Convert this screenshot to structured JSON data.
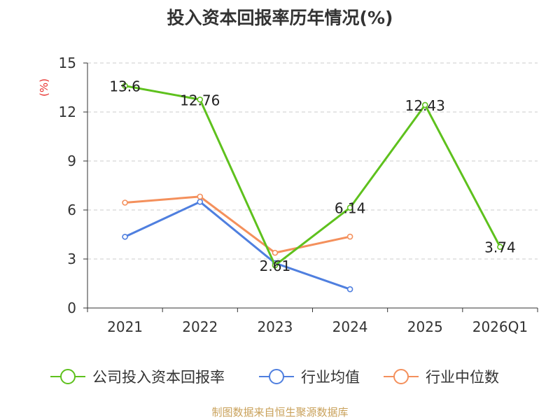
{
  "chart_data": {
    "type": "line",
    "title": "投入资本回报率历年情况(%)",
    "ylabel": "(%)",
    "xlabel": "",
    "categories": [
      "2021",
      "2022",
      "2023",
      "2024",
      "2025",
      "2026Q1"
    ],
    "ylim": [
      0,
      15
    ],
    "yticks": [
      0,
      3,
      6,
      9,
      12,
      15
    ],
    "grid": true,
    "legend_position": "bottom",
    "series": [
      {
        "name": "公司投入资本回报率",
        "color": "#5ec11d",
        "values": [
          13.6,
          12.76,
          2.61,
          6.14,
          12.43,
          3.74
        ],
        "labels": [
          "13.6",
          "12.76",
          "2.61",
          "6.14",
          "12.43",
          "3.74"
        ]
      },
      {
        "name": "行业均值",
        "color": "#4f7fdf",
        "values": [
          4.36,
          6.5,
          2.75,
          1.15,
          null,
          null
        ]
      },
      {
        "name": "行业中位数",
        "color": "#f4905c",
        "values": [
          6.45,
          6.82,
          3.38,
          4.37,
          null,
          null
        ]
      }
    ]
  },
  "source_text": "制图数据来自恒生聚源数据库"
}
